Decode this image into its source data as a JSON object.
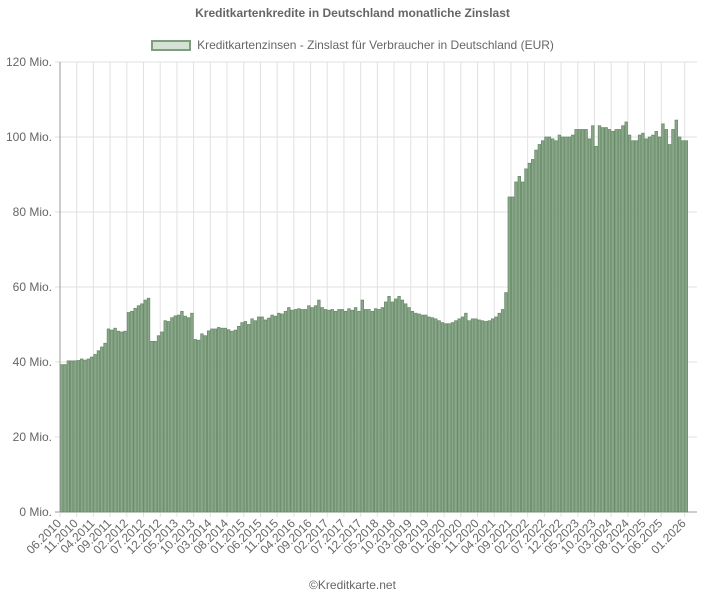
{
  "title": "Kreditkartenkredite in Deutschland monatliche Zinslast",
  "legend": {
    "label": "Kreditkartenzinsen - Zinslast für Verbraucher in Deutschland (EUR)",
    "fill": "#d5e1d5",
    "border": "#7e9f7e"
  },
  "footer": "©Kreditkarte.net",
  "colors": {
    "bar_fill": "#8aa88a",
    "bar_border": "#6a8c6a",
    "grid": "#e1e1e1",
    "axis": "#999999"
  },
  "chart_data": {
    "type": "bar",
    "title": "Kreditkartenkredite in Deutschland monatliche Zinslast",
    "xlabel": "",
    "ylabel": "",
    "ylim": [
      0,
      120
    ],
    "y_ticks": [
      "0 Mio.",
      "20 Mio.",
      "40 Mio.",
      "60 Mio.",
      "80 Mio.",
      "100 Mio.",
      "120 Mio."
    ],
    "x_tick_labels": [
      "06.2010",
      "11.2010",
      "04.2011",
      "09.2011",
      "02.2012",
      "07.2012",
      "12.2012",
      "05.2013",
      "10.2013",
      "03.2014",
      "08.2014",
      "01.2015",
      "06.2015",
      "11.2015",
      "04.2016",
      "09.2016",
      "02.2017",
      "07.2017",
      "12.2017",
      "05.2018",
      "10.2018",
      "03.2019",
      "08.2019",
      "01.2020",
      "06.2020",
      "11.2020",
      "04.2021",
      "09.2021",
      "02.2022",
      "07.2022",
      "12.2022",
      "05.2023",
      "10.2023",
      "03.2024",
      "08.2024",
      "01.2025",
      "06.2025",
      "01.2026"
    ],
    "start_month": "06.2010",
    "end_month": "01.2026",
    "grid": true,
    "legend_position": "top",
    "series": [
      {
        "name": "Kreditkartenzinsen - Zinslast für Verbraucher in Deutschland (EUR)",
        "unit": "Mio. EUR",
        "values": [
          39.3,
          39.3,
          40.3,
          40.3,
          40.3,
          40.4,
          40.8,
          40.5,
          40.8,
          41.3,
          42.0,
          43.0,
          44.0,
          45.0,
          48.8,
          48.5,
          49.0,
          48.2,
          48.0,
          48.2,
          53.2,
          53.5,
          54.3,
          55.0,
          55.5,
          56.5,
          57.0,
          45.5,
          45.5,
          47.0,
          48.0,
          51.0,
          50.8,
          51.8,
          52.3,
          52.5,
          53.5,
          52.2,
          51.8,
          53.0,
          46.0,
          45.8,
          47.5,
          47.0,
          48.3,
          48.8,
          48.8,
          49.2,
          49.0,
          49.0,
          48.6,
          48.2,
          48.5,
          49.5,
          50.5,
          50.8,
          50.0,
          51.5,
          51.0,
          52.0,
          52.0,
          51.2,
          51.7,
          52.5,
          52.2,
          53.0,
          52.8,
          53.5,
          54.5,
          53.8,
          54.0,
          54.2,
          54.0,
          54.0,
          55.0,
          54.5,
          55.0,
          56.5,
          54.5,
          54.0,
          53.8,
          54.0,
          53.5,
          54.0,
          54.0,
          53.5,
          54.2,
          53.8,
          54.5,
          53.5,
          56.5,
          54.0,
          54.0,
          53.5,
          54.2,
          54.0,
          54.5,
          56.0,
          57.5,
          56.0,
          56.8,
          57.5,
          56.5,
          55.5,
          54.5,
          53.5,
          53.0,
          52.8,
          52.5,
          52.5,
          52.0,
          51.8,
          51.5,
          51.0,
          50.5,
          50.2,
          50.2,
          50.5,
          51.0,
          51.5,
          52.0,
          53.0,
          51.0,
          51.5,
          51.5,
          51.2,
          51.0,
          50.8,
          51.0,
          51.5,
          52.0,
          53.0,
          54.0,
          58.5,
          84.0,
          84.0,
          88.0,
          89.5,
          88.0,
          91.5,
          93.0,
          94.0,
          96.5,
          98.0,
          99.0,
          100.0,
          100.0,
          99.5,
          99.0,
          100.5,
          100.0,
          100.0,
          100.0,
          100.5,
          102.0,
          102.0,
          102.0,
          102.0,
          99.5,
          103.0,
          97.5,
          103.0,
          102.5,
          102.5,
          102.0,
          101.5,
          102.0,
          102.0,
          103.0,
          104.0,
          100.5,
          99.0,
          99.0,
          100.5,
          101.0,
          99.5,
          100.0,
          100.5,
          101.5,
          100.0,
          103.5,
          102.0,
          98.0,
          102.0,
          104.5,
          100.0,
          99.0
        ]
      }
    ]
  }
}
